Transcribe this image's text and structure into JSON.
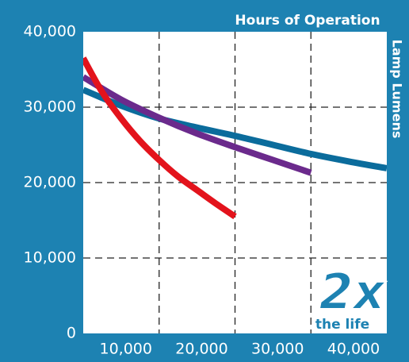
{
  "chart_data": {
    "type": "line",
    "title": "Hours of Operation",
    "ylabel": "Lamp Lumens",
    "annotation": "2x",
    "annotation_sub": "the life",
    "xlim": [
      0,
      40000
    ],
    "ylim": [
      0,
      40000
    ],
    "xticks": [
      {
        "value": 10000,
        "label": "10,000"
      },
      {
        "value": 20000,
        "label": "20,000"
      },
      {
        "value": 30000,
        "label": "30,000"
      },
      {
        "value": 40000,
        "label": "40,000"
      }
    ],
    "yticks": [
      0,
      {
        "value": 10000,
        "label": "10,000"
      },
      {
        "value": 20000,
        "label": "20,000"
      },
      {
        "value": 30000,
        "label": "30,000"
      },
      {
        "value": 40000,
        "label": "40,000"
      }
    ],
    "grid": true,
    "series": [
      {
        "color": "#0b6c9c",
        "x": [
          0,
          5000,
          10000,
          15000,
          20000,
          25000,
          30000,
          35000,
          40000
        ],
        "values": [
          32300,
          30200,
          28500,
          27300,
          26200,
          25000,
          23800,
          22800,
          21900
        ]
      },
      {
        "color": "#6b2a8c",
        "x": [
          0,
          5000,
          10000,
          15000,
          20000,
          25000,
          30000
        ],
        "values": [
          34000,
          31000,
          28600,
          26500,
          24700,
          23000,
          21300
        ]
      },
      {
        "color": "#e3131c",
        "x": [
          0,
          2500,
          5000,
          7500,
          10000,
          12500,
          15000,
          17500,
          20000
        ],
        "values": [
          36500,
          32000,
          28500,
          25500,
          23000,
          20800,
          19000,
          17200,
          15500
        ]
      }
    ]
  }
}
